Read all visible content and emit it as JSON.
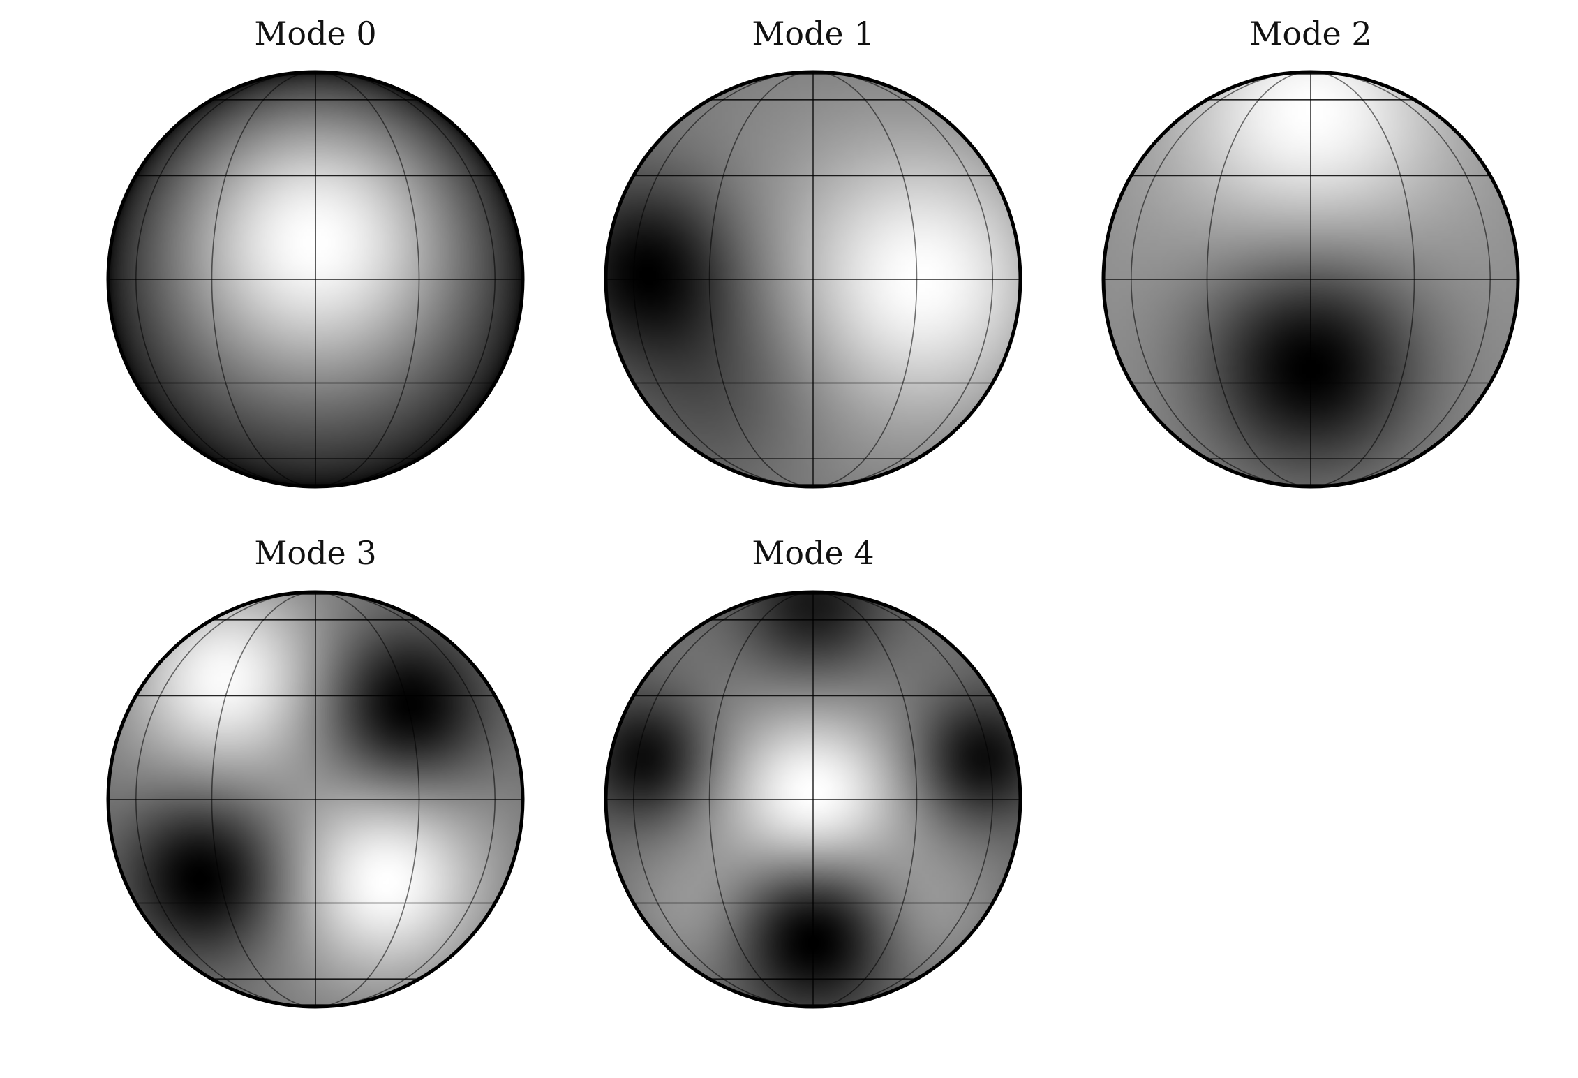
{
  "figure": {
    "colormap": [
      "#000000",
      "#ffffff"
    ],
    "grid_color": "#000000",
    "outline_color": "#000000"
  },
  "modes": [
    {
      "title": "Mode 0",
      "blobs": [
        {
          "u": 0.0,
          "v": 0.25,
          "s": 0.55,
          "a": 1.0
        }
      ],
      "limb_darkening": 0.85
    },
    {
      "title": "Mode 1",
      "blobs": [
        {
          "u": -0.82,
          "v": 0.05,
          "s": 0.32,
          "a": -1.0
        },
        {
          "u": 0.55,
          "v": 0.0,
          "s": 0.45,
          "a": 0.9
        },
        {
          "u": -0.45,
          "v": -0.55,
          "s": 0.35,
          "a": -0.4
        }
      ],
      "limb_darkening": 0.15
    },
    {
      "title": "Mode 2",
      "blobs": [
        {
          "u": 0.0,
          "v": -0.42,
          "s": 0.38,
          "a": -1.1
        },
        {
          "u": 0.0,
          "v": 0.85,
          "s": 0.45,
          "a": 0.8
        }
      ],
      "limb_darkening": 0.1
    },
    {
      "title": "Mode 3",
      "blobs": [
        {
          "u": 0.45,
          "v": 0.45,
          "s": 0.28,
          "a": -1.0
        },
        {
          "u": -0.55,
          "v": -0.38,
          "s": 0.28,
          "a": -1.0
        },
        {
          "u": -0.45,
          "v": 0.6,
          "s": 0.32,
          "a": 0.9
        },
        {
          "u": 0.35,
          "v": -0.4,
          "s": 0.32,
          "a": 0.9
        }
      ],
      "limb_darkening": 0.15
    },
    {
      "title": "Mode 4",
      "blobs": [
        {
          "u": 0.0,
          "v": 0.0,
          "s": 0.3,
          "a": 1.0
        },
        {
          "u": 0.0,
          "v": 0.95,
          "s": 0.25,
          "a": -0.8
        },
        {
          "u": 0.0,
          "v": -0.65,
          "s": 0.28,
          "a": -1.1
        },
        {
          "u": -0.82,
          "v": 0.2,
          "s": 0.22,
          "a": -0.9
        },
        {
          "u": 0.82,
          "v": 0.2,
          "s": 0.22,
          "a": -0.9
        },
        {
          "u": -0.55,
          "v": -0.55,
          "s": 0.25,
          "a": 0.3
        },
        {
          "u": 0.55,
          "v": -0.55,
          "s": 0.25,
          "a": 0.3
        }
      ],
      "limb_darkening": 0.2
    }
  ]
}
